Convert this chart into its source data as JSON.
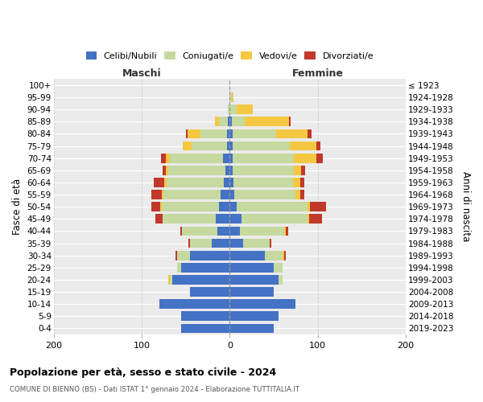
{
  "age_groups": [
    "0-4",
    "5-9",
    "10-14",
    "15-19",
    "20-24",
    "25-29",
    "30-34",
    "35-39",
    "40-44",
    "45-49",
    "50-54",
    "55-59",
    "60-64",
    "65-69",
    "70-74",
    "75-79",
    "80-84",
    "85-89",
    "90-94",
    "95-99",
    "100+"
  ],
  "birth_years": [
    "2019-2023",
    "2014-2018",
    "2009-2013",
    "2004-2008",
    "1999-2003",
    "1994-1998",
    "1989-1993",
    "1984-1988",
    "1979-1983",
    "1974-1978",
    "1969-1973",
    "1964-1968",
    "1959-1963",
    "1954-1958",
    "1949-1953",
    "1944-1948",
    "1939-1943",
    "1934-1938",
    "1929-1933",
    "1924-1928",
    "≤ 1923"
  ],
  "colors": {
    "celibi": "#4472C4",
    "coniugati": "#c5d9a0",
    "vedovi": "#f5c842",
    "divorziati": "#c0392b"
  },
  "maschi": {
    "celibi": [
      55,
      55,
      80,
      45,
      65,
      55,
      45,
      20,
      14,
      16,
      12,
      10,
      7,
      5,
      8,
      3,
      3,
      2,
      0,
      0,
      0
    ],
    "coniugati": [
      0,
      0,
      0,
      0,
      3,
      5,
      15,
      25,
      40,
      60,
      65,
      65,
      65,
      65,
      60,
      40,
      30,
      10,
      2,
      0,
      0
    ],
    "vedovi": [
      0,
      0,
      0,
      0,
      2,
      0,
      0,
      0,
      0,
      0,
      2,
      2,
      2,
      3,
      5,
      10,
      15,
      5,
      0,
      0,
      0
    ],
    "divorziati": [
      0,
      0,
      0,
      0,
      0,
      0,
      2,
      2,
      2,
      8,
      10,
      12,
      12,
      3,
      5,
      0,
      2,
      0,
      0,
      0,
      0
    ]
  },
  "femmine": {
    "celibi": [
      50,
      55,
      75,
      50,
      55,
      50,
      40,
      15,
      12,
      13,
      8,
      5,
      4,
      3,
      3,
      3,
      3,
      2,
      0,
      0,
      0
    ],
    "coniugati": [
      0,
      0,
      0,
      0,
      5,
      10,
      20,
      30,
      50,
      75,
      80,
      70,
      68,
      70,
      70,
      65,
      50,
      15,
      8,
      2,
      0
    ],
    "vedovi": [
      0,
      0,
      0,
      0,
      0,
      0,
      2,
      0,
      2,
      2,
      3,
      5,
      8,
      8,
      25,
      30,
      35,
      50,
      18,
      2,
      0
    ],
    "divorziati": [
      0,
      0,
      0,
      0,
      0,
      0,
      2,
      2,
      2,
      15,
      18,
      5,
      5,
      5,
      8,
      5,
      5,
      2,
      0,
      0,
      0
    ]
  },
  "xlim": 200,
  "title_main": "Popolazione per età, sesso e stato civile - 2024",
  "title_sub": "COMUNE DI BIENNO (BS) - Dati ISTAT 1° gennaio 2024 - Elaborazione TUTTITALIA.IT",
  "ylabel_left": "Fasce di età",
  "ylabel_right": "Anni di nascita",
  "legend_labels": [
    "Celibi/Nubili",
    "Coniugati/e",
    "Vedovi/e",
    "Divorziati/e"
  ],
  "maschi_label": "Maschi",
  "femmine_label": "Femmine",
  "background_color": "#ffffff",
  "plot_bg": "#ebebeb",
  "grid_color": "#ffffff"
}
